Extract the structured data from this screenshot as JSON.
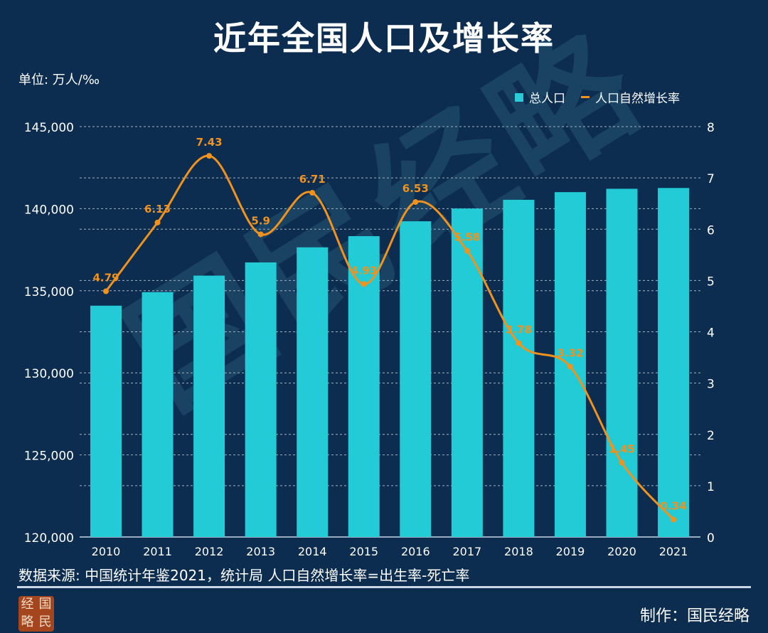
{
  "title": "近年全国人口及增长率",
  "unit": "单位: 万人/‰",
  "watermark": "国民经略",
  "source": "数据来源: 中国统计年鉴2021，统计局  人口自然增长率=出生率-死亡率",
  "credit": "制作：国民经略",
  "stamp": [
    "经",
    "国",
    "略",
    "民"
  ],
  "colors": {
    "background": "#0c2d50",
    "bar": "#22cbd6",
    "line": "#f0921e"
  },
  "chart_data": {
    "type": "bar+line",
    "categories": [
      "2010",
      "2011",
      "2012",
      "2013",
      "2014",
      "2015",
      "2016",
      "2017",
      "2018",
      "2019",
      "2020",
      "2021"
    ],
    "series": [
      {
        "name": "总人口",
        "type": "bar",
        "axis": "left",
        "values": [
          134091,
          134916,
          135922,
          136726,
          137646,
          138326,
          139232,
          140011,
          140541,
          141008,
          141212,
          141260
        ]
      },
      {
        "name": "人口自然增长率",
        "type": "line",
        "axis": "right",
        "values": [
          4.79,
          6.13,
          7.43,
          5.9,
          6.71,
          4.93,
          6.53,
          5.58,
          3.78,
          3.32,
          1.45,
          0.34
        ],
        "labels": [
          "4.79",
          "6.13",
          "7.43",
          "5.9",
          "6.71",
          "4.93",
          "6.53",
          "5.58",
          "3.78",
          "3.32",
          "1.45",
          "0.34"
        ]
      }
    ],
    "left_axis": {
      "range": [
        120000,
        145000
      ],
      "ticks": [
        "120,000",
        "125,000",
        "130,000",
        "135,000",
        "140,000",
        "145,000"
      ]
    },
    "right_axis": {
      "range": [
        0,
        8
      ],
      "ticks": [
        "0",
        "1",
        "2",
        "3",
        "4",
        "5",
        "6",
        "7",
        "8"
      ]
    },
    "grid": true,
    "legend": "top-right"
  }
}
